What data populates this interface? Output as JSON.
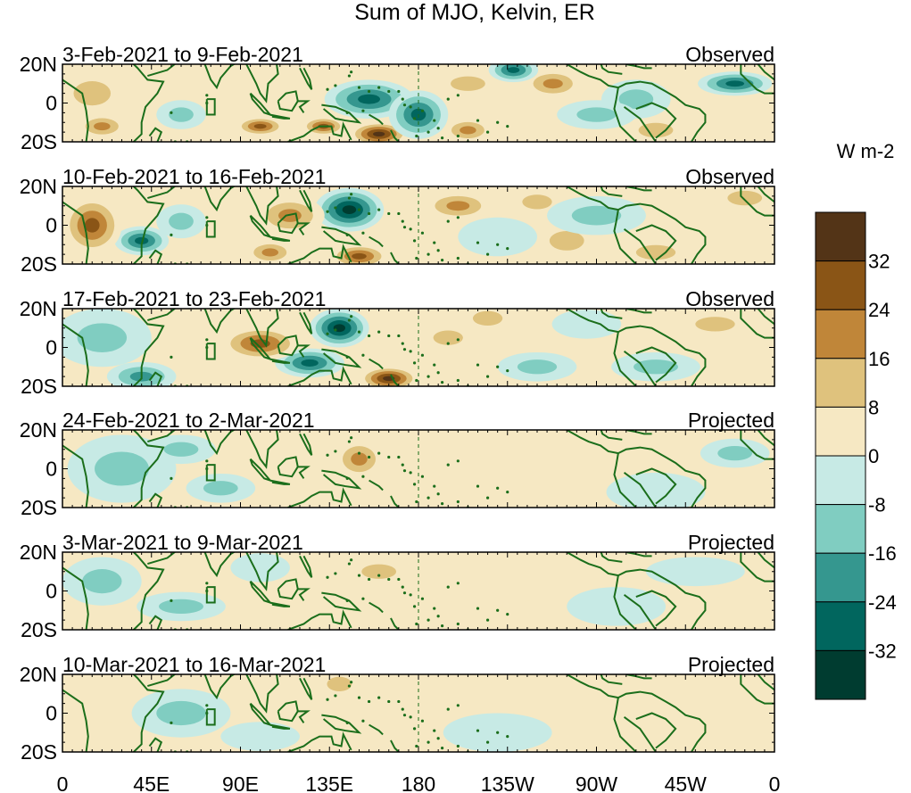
{
  "chart_data": {
    "type": "heatmap",
    "title": "Sum of MJO, Kelvin, ER",
    "units": "W m-2",
    "x_tick_labels": [
      "0",
      "45E",
      "90E",
      "135E",
      "180",
      "135W",
      "90W",
      "45W",
      "0"
    ],
    "x_tick_lon": [
      0,
      45,
      90,
      135,
      180,
      225,
      270,
      315,
      360
    ],
    "y_tick_labels": [
      "20N",
      "0",
      "20S"
    ],
    "y_tick_lat": [
      20,
      0,
      -20
    ],
    "xlim": [
      0,
      360
    ],
    "ylim": [
      -20,
      20
    ],
    "dateline_lon": 180,
    "colorbar": {
      "levels": [
        "32",
        "24",
        "16",
        "8",
        "0",
        "-8",
        "-16",
        "-24",
        "-32"
      ],
      "colors": [
        "#533417",
        "#8a5516",
        "#c08639",
        "#dfc27d",
        "#f6e8c3",
        "#c7eae5",
        "#80cdc1",
        "#35978f",
        "#01665e",
        "#003c30"
      ]
    },
    "panels": [
      {
        "date_range": "3-Feb-2021 to 9-Feb-2021",
        "status": "Observed",
        "anomalies": [
          {
            "lon": 160,
            "lat": -16,
            "val": 38,
            "rlon": 12,
            "rlat": 5
          },
          {
            "lon": 132,
            "lat": -12,
            "val": 26,
            "rlon": 9,
            "rlat": 4
          },
          {
            "lon": 100,
            "lat": -12,
            "val": 26,
            "rlon": 10,
            "rlat": 4
          },
          {
            "lon": 205,
            "lat": -14,
            "val": 22,
            "rlon": 10,
            "rlat": 5
          },
          {
            "lon": 248,
            "lat": 10,
            "val": 22,
            "rlon": 12,
            "rlat": 6
          },
          {
            "lon": 20,
            "lat": -12,
            "val": 22,
            "rlon": 10,
            "rlat": 5
          },
          {
            "lon": 205,
            "lat": 10,
            "val": 16,
            "rlon": 14,
            "rlat": 6
          },
          {
            "lon": 15,
            "lat": 5,
            "val": 10,
            "rlon": 15,
            "rlat": 10
          },
          {
            "lon": 300,
            "lat": -14,
            "val": 12,
            "rlon": 14,
            "rlat": 6
          },
          {
            "lon": 155,
            "lat": 2,
            "val": -28,
            "rlon": 18,
            "rlat": 8
          },
          {
            "lon": 180,
            "lat": -6,
            "val": -32,
            "rlon": 12,
            "rlat": 10
          },
          {
            "lon": 228,
            "lat": 17,
            "val": -26,
            "rlon": 10,
            "rlat": 5
          },
          {
            "lon": 340,
            "lat": 10,
            "val": -32,
            "rlon": 15,
            "rlat": 5
          },
          {
            "lon": 290,
            "lat": 2,
            "val": -14,
            "rlon": 14,
            "rlat": 8
          },
          {
            "lon": 60,
            "lat": -6,
            "val": -12,
            "rlon": 10,
            "rlat": 6
          },
          {
            "lon": 270,
            "lat": -6,
            "val": -10,
            "rlon": 16,
            "rlat": 6
          }
        ]
      },
      {
        "date_range": "10-Feb-2021 to 16-Feb-2021",
        "status": "Observed",
        "anomalies": [
          {
            "lon": 145,
            "lat": 8,
            "val": -38,
            "rlon": 14,
            "rlat": 9
          },
          {
            "lon": 40,
            "lat": -8,
            "val": -26,
            "rlon": 11,
            "rlat": 6
          },
          {
            "lon": 60,
            "lat": 2,
            "val": -14,
            "rlon": 10,
            "rlat": 7
          },
          {
            "lon": 15,
            "lat": 0,
            "val": 28,
            "rlon": 12,
            "rlat": 12
          },
          {
            "lon": 200,
            "lat": 10,
            "val": 22,
            "rlon": 14,
            "rlat": 6
          },
          {
            "lon": 115,
            "lat": 5,
            "val": 18,
            "rlon": 14,
            "rlat": 8
          },
          {
            "lon": 150,
            "lat": -16,
            "val": 26,
            "rlon": 12,
            "rlat": 5
          },
          {
            "lon": 105,
            "lat": -14,
            "val": 20,
            "rlon": 10,
            "rlat": 5
          },
          {
            "lon": 240,
            "lat": 12,
            "val": 16,
            "rlon": 12,
            "rlat": 6
          },
          {
            "lon": 255,
            "lat": -8,
            "val": 10,
            "rlon": 14,
            "rlat": 8
          },
          {
            "lon": 300,
            "lat": -14,
            "val": 12,
            "rlon": 16,
            "rlat": 6
          },
          {
            "lon": 345,
            "lat": 14,
            "val": 10,
            "rlon": 14,
            "rlat": 6
          },
          {
            "lon": 270,
            "lat": 5,
            "val": -10,
            "rlon": 20,
            "rlat": 8
          },
          {
            "lon": 220,
            "lat": -6,
            "val": -8,
            "rlon": 16,
            "rlat": 8
          }
        ]
      },
      {
        "date_range": "17-Feb-2021 to 23-Feb-2021",
        "status": "Observed",
        "anomalies": [
          {
            "lon": 140,
            "lat": 10,
            "val": -36,
            "rlon": 12,
            "rlat": 8
          },
          {
            "lon": 125,
            "lat": -8,
            "val": -28,
            "rlon": 14,
            "rlat": 6
          },
          {
            "lon": 20,
            "lat": 5,
            "val": -16,
            "rlon": 20,
            "rlat": 12
          },
          {
            "lon": 40,
            "lat": -15,
            "val": -22,
            "rlon": 14,
            "rlat": 6
          },
          {
            "lon": 100,
            "lat": 2,
            "val": 28,
            "rlon": 16,
            "rlat": 7
          },
          {
            "lon": 165,
            "lat": -16,
            "val": 36,
            "rlon": 12,
            "rlat": 5
          },
          {
            "lon": 195,
            "lat": 5,
            "val": 16,
            "rlon": 12,
            "rlat": 6
          },
          {
            "lon": 215,
            "lat": 15,
            "val": 10,
            "rlon": 12,
            "rlat": 6
          },
          {
            "lon": 240,
            "lat": -10,
            "val": -10,
            "rlon": 16,
            "rlat": 6
          },
          {
            "lon": 300,
            "lat": -10,
            "val": -12,
            "rlon": 18,
            "rlat": 6
          },
          {
            "lon": 330,
            "lat": 12,
            "val": 10,
            "rlon": 16,
            "rlat": 6
          },
          {
            "lon": 265,
            "lat": 12,
            "val": -8,
            "rlon": 14,
            "rlat": 6
          }
        ]
      },
      {
        "date_range": "24-Feb-2021 to 2-Mar-2021",
        "status": "Projected",
        "anomalies": [
          {
            "lon": 150,
            "lat": 5,
            "val": 22,
            "rlon": 10,
            "rlat": 8
          },
          {
            "lon": 110,
            "lat": 2,
            "val": 8,
            "rlon": 14,
            "rlat": 8
          },
          {
            "lon": 30,
            "lat": 0,
            "val": -12,
            "rlon": 22,
            "rlat": 14
          },
          {
            "lon": 80,
            "lat": -10,
            "val": -10,
            "rlon": 14,
            "rlat": 6
          },
          {
            "lon": 60,
            "lat": 10,
            "val": -10,
            "rlon": 14,
            "rlat": 6
          },
          {
            "lon": 240,
            "lat": 3,
            "val": 8,
            "rlon": 24,
            "rlat": 10
          },
          {
            "lon": 300,
            "lat": -12,
            "val": -8,
            "rlon": 20,
            "rlat": 8
          },
          {
            "lon": 340,
            "lat": 8,
            "val": -10,
            "rlon": 14,
            "rlat": 6
          },
          {
            "lon": 200,
            "lat": -14,
            "val": 8,
            "rlon": 16,
            "rlat": 6
          }
        ]
      },
      {
        "date_range": "3-Mar-2021 to 9-Mar-2021",
        "status": "Projected",
        "anomalies": [
          {
            "lon": 60,
            "lat": -8,
            "val": -14,
            "rlon": 18,
            "rlat": 6
          },
          {
            "lon": 20,
            "lat": 5,
            "val": -10,
            "rlon": 16,
            "rlat": 10
          },
          {
            "lon": 160,
            "lat": 10,
            "val": 10,
            "rlon": 14,
            "rlat": 6
          },
          {
            "lon": 120,
            "lat": -12,
            "val": 8,
            "rlon": 16,
            "rlat": 6
          },
          {
            "lon": 215,
            "lat": 5,
            "val": 8,
            "rlon": 28,
            "rlat": 10
          },
          {
            "lon": 280,
            "lat": -8,
            "val": -8,
            "rlon": 20,
            "rlat": 8
          },
          {
            "lon": 320,
            "lat": 10,
            "val": -8,
            "rlon": 20,
            "rlat": 6
          },
          {
            "lon": 340,
            "lat": -10,
            "val": 8,
            "rlon": 14,
            "rlat": 6
          },
          {
            "lon": 100,
            "lat": 12,
            "val": -8,
            "rlon": 12,
            "rlat": 6
          }
        ]
      },
      {
        "date_range": "10-Mar-2021 to 16-Mar-2021",
        "status": "Projected",
        "anomalies": [
          {
            "lon": 140,
            "lat": 15,
            "val": 14,
            "rlon": 10,
            "rlat": 6
          },
          {
            "lon": 60,
            "lat": 0,
            "val": -10,
            "rlon": 20,
            "rlat": 10
          },
          {
            "lon": 25,
            "lat": -12,
            "val": 8,
            "rlon": 14,
            "rlat": 6
          },
          {
            "lon": 100,
            "lat": -12,
            "val": -8,
            "rlon": 16,
            "rlat": 6
          },
          {
            "lon": 220,
            "lat": -10,
            "val": -8,
            "rlon": 22,
            "rlat": 8
          },
          {
            "lon": 290,
            "lat": 5,
            "val": 8,
            "rlon": 22,
            "rlat": 8
          },
          {
            "lon": 320,
            "lat": -14,
            "val": 8,
            "rlon": 16,
            "rlat": 6
          },
          {
            "lon": 200,
            "lat": 10,
            "val": 6,
            "rlon": 20,
            "rlat": 6
          }
        ]
      }
    ]
  }
}
